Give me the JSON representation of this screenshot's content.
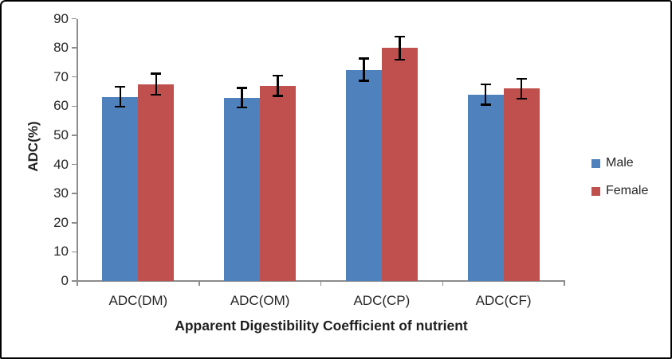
{
  "figure": {
    "background": "#ffffff",
    "border_color": "#000000"
  },
  "chart_data": {
    "type": "bar",
    "title": "",
    "categories": [
      "ADC(DM)",
      "ADC(OM)",
      "ADC(CP)",
      "ADC(CF)"
    ],
    "series": [
      {
        "name": "Male",
        "color": "#4F81BD",
        "values": [
          63.2,
          62.9,
          72.5,
          64.0
        ],
        "errors": [
          3.4,
          3.4,
          3.8,
          3.5
        ]
      },
      {
        "name": "Female",
        "color": "#C0504D",
        "values": [
          67.5,
          67.0,
          79.9,
          66.0
        ],
        "errors": [
          3.6,
          3.5,
          3.9,
          3.4
        ]
      }
    ],
    "xlabel": "Apparent Digestibility Coefficient of nutrient",
    "ylabel": "ADC(%)",
    "ylim": [
      0,
      90
    ],
    "yticks": [
      0,
      10,
      20,
      30,
      40,
      50,
      60,
      70,
      80,
      90
    ],
    "grid": false,
    "legend_position": "right",
    "error_bars": true,
    "error_bar_color": "#000000",
    "axis_color": "#8C8C8C",
    "text_color": "#262626"
  }
}
